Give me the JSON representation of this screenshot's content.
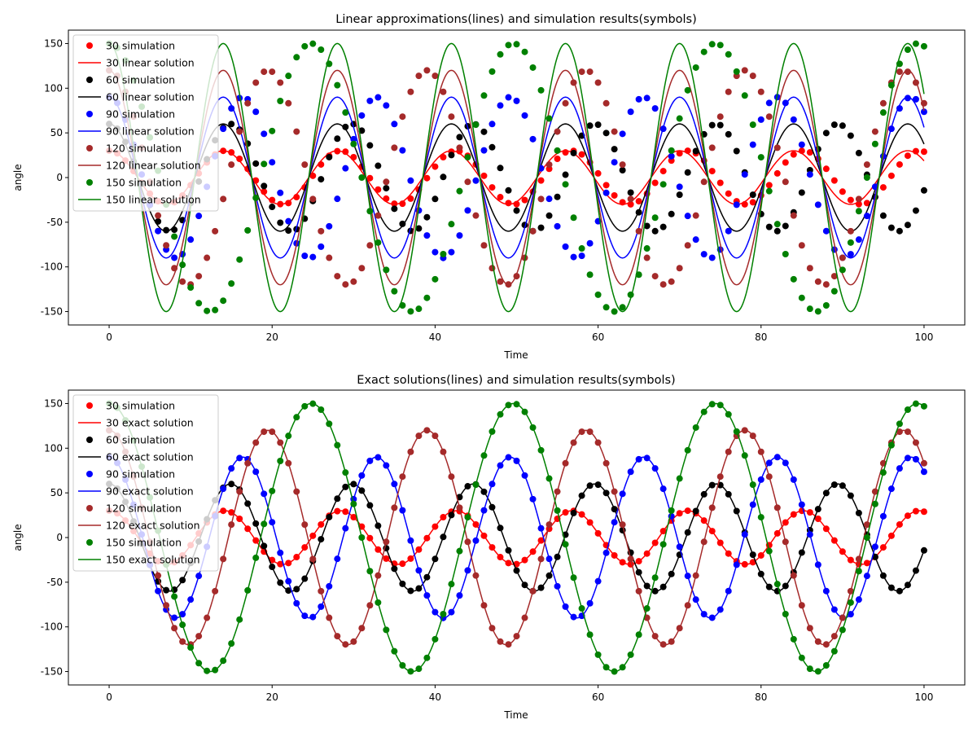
{
  "chart_data": [
    {
      "type": "line",
      "title": "Linear approximations(lines) and simulation results(symbols)",
      "xlabel": "Time",
      "ylabel": "angle",
      "xlim": [
        -5,
        105
      ],
      "ylim": [
        -165,
        165
      ],
      "xticks": [
        0,
        20,
        40,
        60,
        80,
        100
      ],
      "yticks": [
        -150,
        -100,
        -50,
        0,
        50,
        100,
        150
      ],
      "legend_position": "top-left",
      "grid": false,
      "line_model": "linear",
      "time_range": [
        0,
        100
      ],
      "simulation_times": [
        0,
        1,
        2,
        3,
        4,
        5,
        6,
        7,
        8,
        9,
        10,
        11,
        12,
        13,
        14,
        15,
        16,
        17,
        18,
        19,
        20,
        21,
        22,
        23,
        24,
        25,
        26,
        27,
        28,
        29,
        30,
        31,
        32,
        33,
        34,
        35,
        36,
        37,
        38,
        39,
        40,
        41,
        42,
        43,
        44,
        45,
        46,
        47,
        48,
        49,
        50,
        51,
        52,
        53,
        54,
        55,
        56,
        57,
        58,
        59,
        60,
        61,
        62,
        63,
        64,
        65,
        66,
        67,
        68,
        69,
        70,
        71,
        72,
        73,
        74,
        75,
        76,
        77,
        78,
        79,
        80,
        81,
        82,
        83,
        84,
        85,
        86,
        87,
        88,
        89,
        90,
        91,
        92,
        93,
        94,
        95,
        96,
        97,
        98,
        99,
        100
      ],
      "series": [
        {
          "amplitude": 30,
          "color": "#ff0000",
          "simulation_label": "30 simulation",
          "line_label": "30 linear solution",
          "linear_period": 14.0,
          "simulation_period": 14.2
        },
        {
          "amplitude": 60,
          "color": "#000000",
          "simulation_label": "60 simulation",
          "line_label": "60 linear solution",
          "linear_period": 14.0,
          "simulation_period": 14.9
        },
        {
          "amplitude": 90,
          "color": "#0000ff",
          "simulation_label": "90 simulation",
          "line_label": "90 linear solution",
          "linear_period": 14.0,
          "simulation_period": 16.4
        },
        {
          "amplitude": 120,
          "color": "#a52a2a",
          "simulation_label": "120 simulation",
          "line_label": "120 linear solution",
          "linear_period": 14.0,
          "simulation_period": 19.5
        },
        {
          "amplitude": 150,
          "color": "#008000",
          "simulation_label": "150 simulation",
          "line_label": "150 linear solution",
          "linear_period": 14.0,
          "simulation_period": 24.8
        }
      ]
    },
    {
      "type": "line",
      "title": "Exact solutions(lines) and simulation results(symbols)",
      "xlabel": "Time",
      "ylabel": "angle",
      "xlim": [
        -5,
        105
      ],
      "ylim": [
        -165,
        165
      ],
      "xticks": [
        0,
        20,
        40,
        60,
        80,
        100
      ],
      "yticks": [
        -150,
        -100,
        -50,
        0,
        50,
        100,
        150
      ],
      "legend_position": "top-left",
      "grid": false,
      "line_model": "exact",
      "time_range": [
        0,
        100
      ],
      "simulation_times": [
        0,
        1,
        2,
        3,
        4,
        5,
        6,
        7,
        8,
        9,
        10,
        11,
        12,
        13,
        14,
        15,
        16,
        17,
        18,
        19,
        20,
        21,
        22,
        23,
        24,
        25,
        26,
        27,
        28,
        29,
        30,
        31,
        32,
        33,
        34,
        35,
        36,
        37,
        38,
        39,
        40,
        41,
        42,
        43,
        44,
        45,
        46,
        47,
        48,
        49,
        50,
        51,
        52,
        53,
        54,
        55,
        56,
        57,
        58,
        59,
        60,
        61,
        62,
        63,
        64,
        65,
        66,
        67,
        68,
        69,
        70,
        71,
        72,
        73,
        74,
        75,
        76,
        77,
        78,
        79,
        80,
        81,
        82,
        83,
        84,
        85,
        86,
        87,
        88,
        89,
        90,
        91,
        92,
        93,
        94,
        95,
        96,
        97,
        98,
        99,
        100
      ],
      "series": [
        {
          "amplitude": 30,
          "color": "#ff0000",
          "simulation_label": "30 simulation",
          "line_label": "30 exact solution",
          "simulation_period": 14.2
        },
        {
          "amplitude": 60,
          "color": "#000000",
          "simulation_label": "60 simulation",
          "line_label": "60 exact solution",
          "simulation_period": 14.9
        },
        {
          "amplitude": 90,
          "color": "#0000ff",
          "simulation_label": "90 simulation",
          "line_label": "90 exact solution",
          "simulation_period": 16.4
        },
        {
          "amplitude": 120,
          "color": "#a52a2a",
          "simulation_label": "120 simulation",
          "line_label": "120 exact solution",
          "simulation_period": 19.5
        },
        {
          "amplitude": 150,
          "color": "#008000",
          "simulation_label": "150 simulation",
          "line_label": "150 exact solution",
          "simulation_period": 24.8
        }
      ]
    }
  ]
}
